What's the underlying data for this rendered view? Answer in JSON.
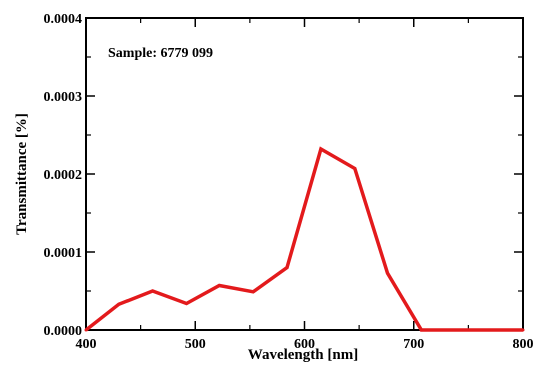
{
  "chart_data": {
    "type": "line",
    "annotation": "Sample: 6779 099",
    "xlabel": "Wavelength [nm]",
    "ylabel": "Transmittance [%]",
    "xlim": [
      400,
      800
    ],
    "ylim": [
      0,
      0.0004
    ],
    "x_ticks": [
      "400",
      "500",
      "600",
      "700",
      "800"
    ],
    "y_ticks": [
      "0.0000",
      "0.0001",
      "0.0002",
      "0.0003",
      "0.0004"
    ],
    "grid": false,
    "legend": "none",
    "series": [
      {
        "color": "#e31a1c",
        "x": [
          400,
          430,
          461,
          492,
          522,
          553,
          584,
          615,
          646,
          676,
          707,
          738,
          769,
          800
        ],
        "y": [
          0.0,
          3.3e-05,
          5e-05,
          3.4e-05,
          5.7e-05,
          4.9e-05,
          8e-05,
          0.000232,
          0.000207,
          7.3e-05,
          0.0,
          0.0,
          0.0,
          0.0
        ]
      }
    ]
  }
}
